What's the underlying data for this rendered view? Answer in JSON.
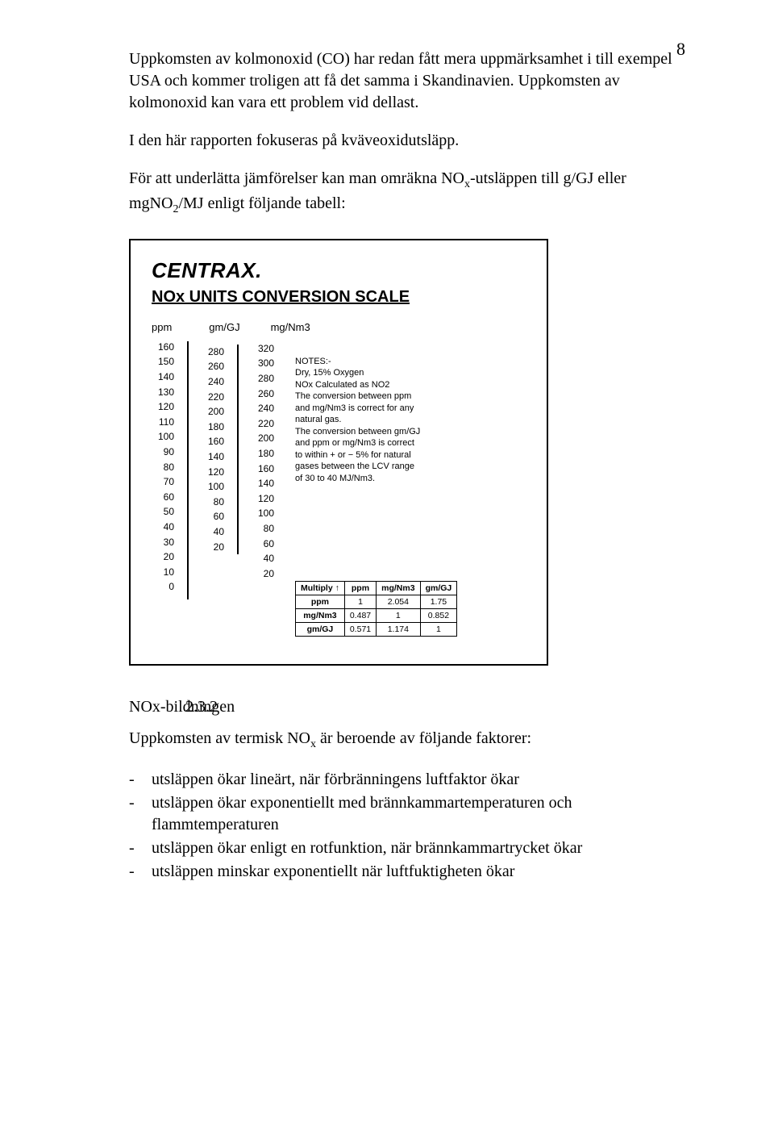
{
  "page_number": "8",
  "p1": "Uppkomsten av kolmonoxid (CO) har redan fått mera uppmärksamhet i till exempel USA och kommer troligen att få det samma i Skandinavien. Uppkomsten av kolmonoxid kan vara ett problem vid dellast.",
  "p2": "I den här rapporten fokuseras på kväveoxidutsläpp.",
  "p3a": "För att underlätta jämförelser kan man omräkna NO",
  "p3b": "-utsläppen till g/GJ eller mgNO",
  "p3c": "/MJ enligt följande tabell:",
  "p3_sub1": "x",
  "p3_sub2": "2",
  "figure": {
    "brand": "CENTRAX.",
    "title": "NOx UNITS CONVERSION SCALE",
    "labels": {
      "ppm": "ppm",
      "gmgj": "gm/GJ",
      "mgnm3": "mg/Nm3"
    },
    "scale_ppm": [
      "160",
      "150",
      "140",
      "130",
      "120",
      "110",
      "100",
      "90",
      "80",
      "70",
      "60",
      "50",
      "40",
      "30",
      "20",
      "10",
      "0"
    ],
    "scale_gmgj": [
      "280",
      "260",
      "240",
      "220",
      "200",
      "180",
      "160",
      "140",
      "120",
      "100",
      "80",
      "60",
      "40",
      "20"
    ],
    "scale_mgnm3": [
      "320",
      "300",
      "280",
      "260",
      "240",
      "220",
      "200",
      "180",
      "160",
      "140",
      "120",
      "100",
      "80",
      "60",
      "40",
      "20"
    ],
    "notes_title": "NOTES:-",
    "notes_lines": [
      "Dry, 15% Oxygen",
      "NOx Calculated as NO2",
      "The conversion between ppm",
      "and mg/Nm3 is correct for any",
      "natural gas.",
      "The conversion between gm/GJ",
      "and ppm or mg/Nm3 is correct",
      "to within + or − 5% for natural",
      "gases between the LCV range",
      "of 30 to 40 MJ/Nm3."
    ],
    "table": {
      "head": [
        "Multiply ↑",
        "ppm",
        "mg/Nm3",
        "gm/GJ"
      ],
      "rows": [
        [
          "ppm",
          "1",
          "2.054",
          "1.75"
        ],
        [
          "mg/Nm3",
          "0.487",
          "1",
          "0.852"
        ],
        [
          "gm/GJ",
          "0.571",
          "1.174",
          "1"
        ]
      ]
    }
  },
  "section_num": "2.3.2",
  "section_title": "NOx-bildningen",
  "p4a": "Uppkomsten av termisk NO",
  "p4b": " är beroende av följande faktorer:",
  "p4_sub": "x",
  "bullets": [
    "utsläppen ökar lineärt, när förbränningens luftfaktor ökar",
    "utsläppen ökar exponentiellt med brännkammartemperaturen och flammtemperaturen",
    "utsläppen ökar enligt en rotfunktion, när brännkammartrycket ökar",
    "utsläppen minskar exponentiellt när luftfuktigheten ökar"
  ]
}
